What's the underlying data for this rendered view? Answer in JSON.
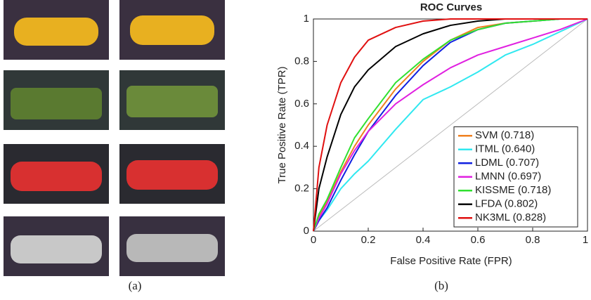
{
  "captions": [
    "(a)",
    "(b)"
  ],
  "chart_data": {
    "type": "line",
    "title": "ROC Curves",
    "xlabel": "False Positive Rate (FPR)",
    "ylabel": "True Positive Rate (TPR)",
    "x": [
      0,
      0.02,
      0.05,
      0.1,
      0.15,
      0.2,
      0.3,
      0.4,
      0.5,
      0.6,
      0.7,
      0.8,
      0.9,
      1
    ],
    "xlim": [
      0,
      1
    ],
    "ylim": [
      0,
      1
    ],
    "xticks": [
      0,
      0.2,
      0.4,
      0.6,
      0.8,
      1
    ],
    "yticks": [
      0,
      0.2,
      0.4,
      0.6,
      0.8,
      1
    ],
    "legend": "lower right",
    "series": [
      {
        "name": "SVM (0.718)",
        "color": "#f08020",
        "values": [
          0,
          0.07,
          0.14,
          0.28,
          0.4,
          0.5,
          0.67,
          0.8,
          0.9,
          0.96,
          0.98,
          0.99,
          1,
          1
        ]
      },
      {
        "name": "ITML (0.640)",
        "color": "#30e8f0",
        "values": [
          0,
          0.05,
          0.1,
          0.2,
          0.27,
          0.33,
          0.48,
          0.62,
          0.68,
          0.75,
          0.83,
          0.88,
          0.94,
          1
        ]
      },
      {
        "name": "LDML (0.707)",
        "color": "#1020e0",
        "values": [
          0,
          0.05,
          0.11,
          0.24,
          0.36,
          0.47,
          0.64,
          0.78,
          0.89,
          0.95,
          0.98,
          0.99,
          1,
          1
        ]
      },
      {
        "name": "LMNN (0.697)",
        "color": "#e020e0",
        "values": [
          0,
          0.06,
          0.13,
          0.27,
          0.38,
          0.47,
          0.6,
          0.69,
          0.77,
          0.83,
          0.87,
          0.91,
          0.95,
          1
        ]
      },
      {
        "name": "KISSME (0.718)",
        "color": "#30e030",
        "values": [
          0,
          0.08,
          0.15,
          0.3,
          0.44,
          0.53,
          0.7,
          0.81,
          0.9,
          0.95,
          0.98,
          0.99,
          1,
          1
        ]
      },
      {
        "name": "LFDA (0.802)",
        "color": "#000000",
        "values": [
          0,
          0.2,
          0.35,
          0.55,
          0.68,
          0.76,
          0.87,
          0.93,
          0.97,
          0.99,
          1,
          1,
          1,
          1
        ]
      },
      {
        "name": "NK3ML (0.828)",
        "color": "#e01010",
        "values": [
          0,
          0.3,
          0.5,
          0.7,
          0.82,
          0.9,
          0.96,
          0.99,
          1,
          1,
          1,
          1,
          1,
          1
        ]
      }
    ]
  }
}
